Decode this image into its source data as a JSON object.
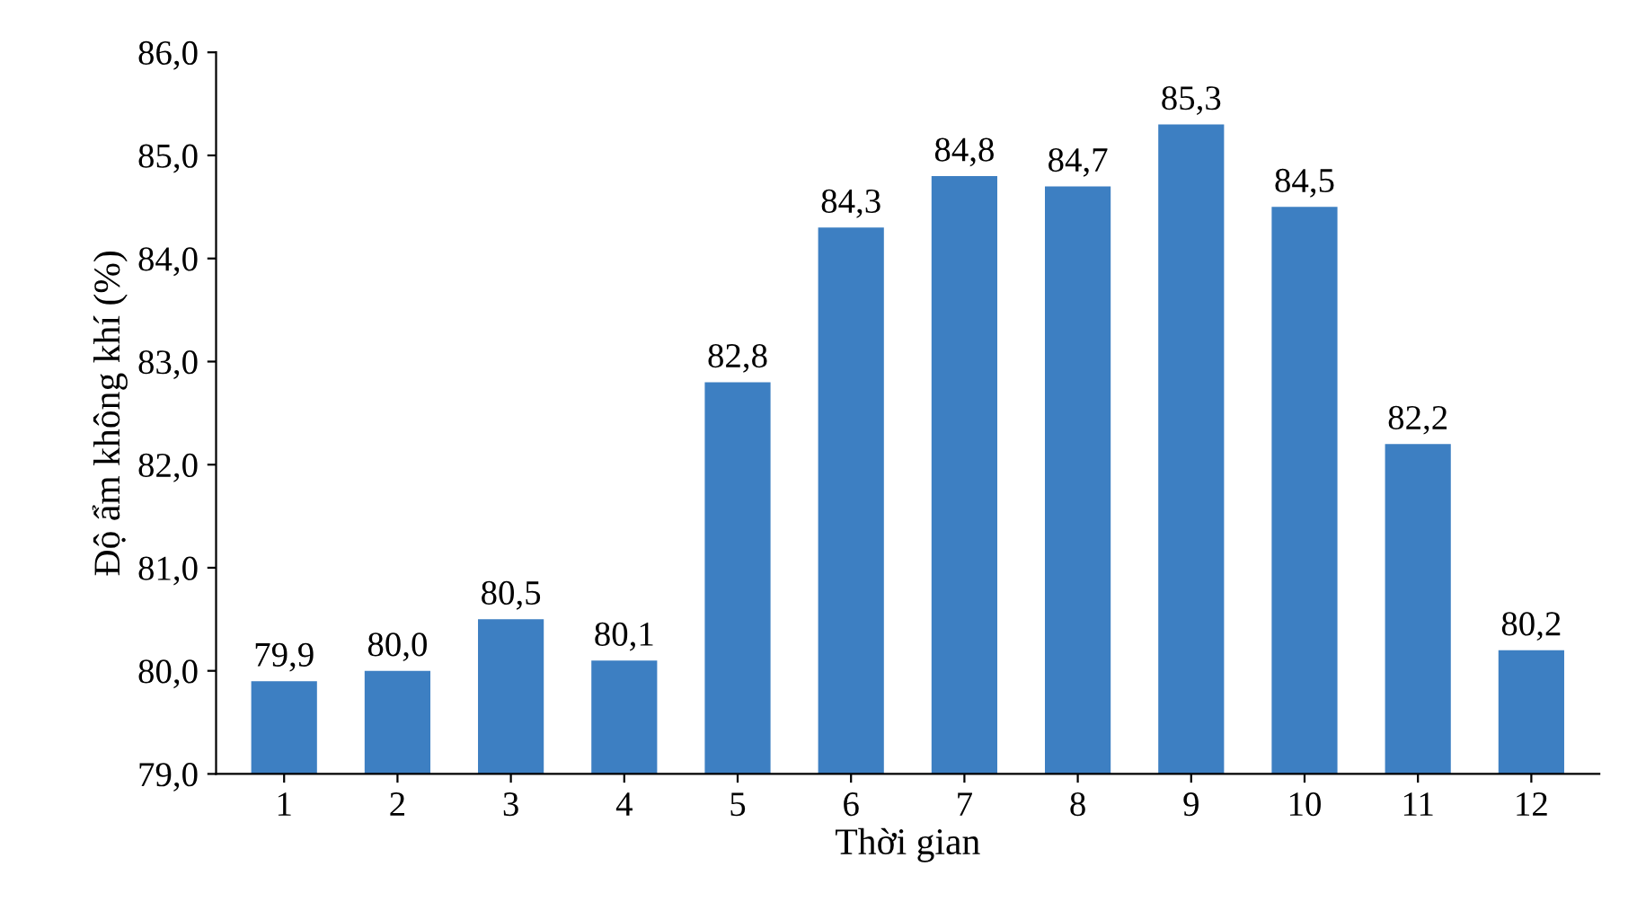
{
  "chart_data": {
    "type": "bar",
    "xlabel": "Thời gian",
    "ylabel": "Độ ẩm không khí (%)",
    "categories": [
      "1",
      "2",
      "3",
      "4",
      "5",
      "6",
      "7",
      "8",
      "9",
      "10",
      "11",
      "12"
    ],
    "values": [
      79.9,
      80.0,
      80.5,
      80.1,
      82.8,
      84.3,
      84.8,
      84.7,
      85.3,
      84.5,
      82.2,
      80.2
    ],
    "value_labels": [
      "79,9",
      "80,0",
      "80,5",
      "80,1",
      "82,8",
      "84,3",
      "84,8",
      "84,7",
      "85,3",
      "84,5",
      "82,2",
      "80,2"
    ],
    "color": "#3d7fc2",
    "ylim": [
      79,
      86
    ],
    "yticks": [
      {
        "value": 79,
        "label": "79,0"
      },
      {
        "value": 80,
        "label": "80,0"
      },
      {
        "value": 81,
        "label": "81,0"
      },
      {
        "value": 82,
        "label": "82,0"
      },
      {
        "value": 83,
        "label": "83,0"
      },
      {
        "value": 84,
        "label": "84,0"
      },
      {
        "value": 85,
        "label": "85,0"
      },
      {
        "value": 86,
        "label": "86,0"
      }
    ],
    "grid": false,
    "legend": false
  }
}
